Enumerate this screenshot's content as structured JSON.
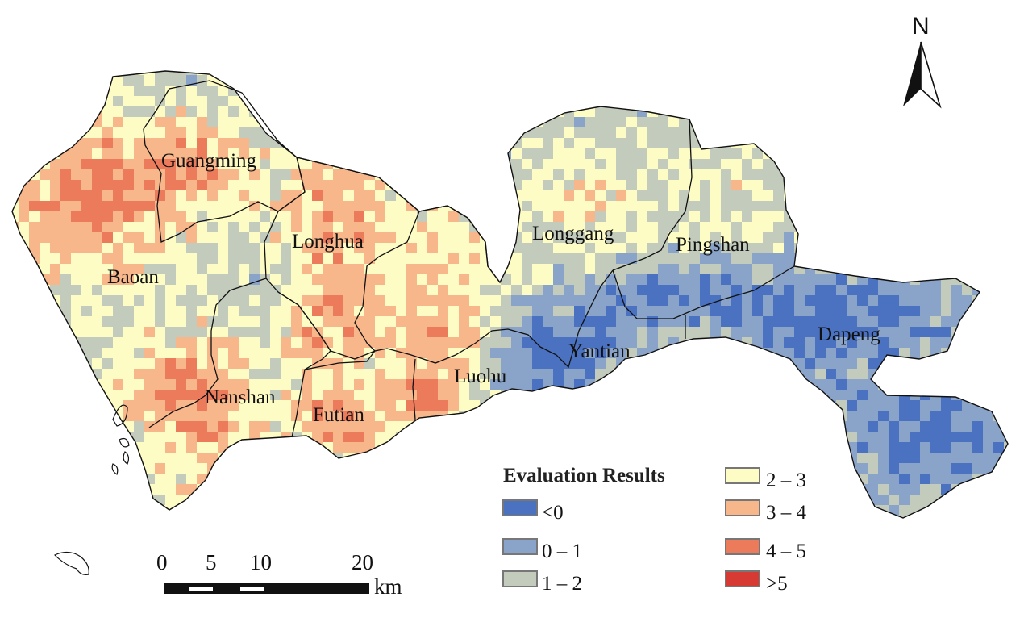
{
  "districts": [
    {
      "id": "guangming",
      "label": "Guangming"
    },
    {
      "id": "longhua",
      "label": "Longhua"
    },
    {
      "id": "baoan",
      "label": "Baoan"
    },
    {
      "id": "longgang",
      "label": "Longgang"
    },
    {
      "id": "pingshan",
      "label": "Pingshan"
    },
    {
      "id": "yantian",
      "label": "Yantian"
    },
    {
      "id": "luohu",
      "label": "Luohu"
    },
    {
      "id": "dapeng",
      "label": "Dapeng"
    },
    {
      "id": "nanshan",
      "label": "Nanshan"
    },
    {
      "id": "futian",
      "label": "Futian"
    }
  ],
  "legend": {
    "title": "Evaluation Results",
    "classes": [
      {
        "label": "<0",
        "color": "#4a72c0"
      },
      {
        "label": "0 – 1",
        "color": "#8aa3c8"
      },
      {
        "label": "1 – 2",
        "color": "#c3cbbd"
      },
      {
        "label": "2 – 3",
        "color": "#fcfcc4"
      },
      {
        "label": "3 – 4",
        "color": "#f7b78a"
      },
      {
        "label": "4 – 5",
        "color": "#ec7b5c"
      },
      {
        "label": ">5",
        "color": "#d63a32"
      }
    ]
  },
  "scale_bar": {
    "ticks": [
      "0",
      "5",
      "10",
      "20"
    ],
    "unit": "km"
  },
  "north_arrow": {
    "label": "N",
    "icon": "north-arrow-icon"
  },
  "colors": {
    "boundary": "#111111",
    "background": "#ffffff"
  }
}
